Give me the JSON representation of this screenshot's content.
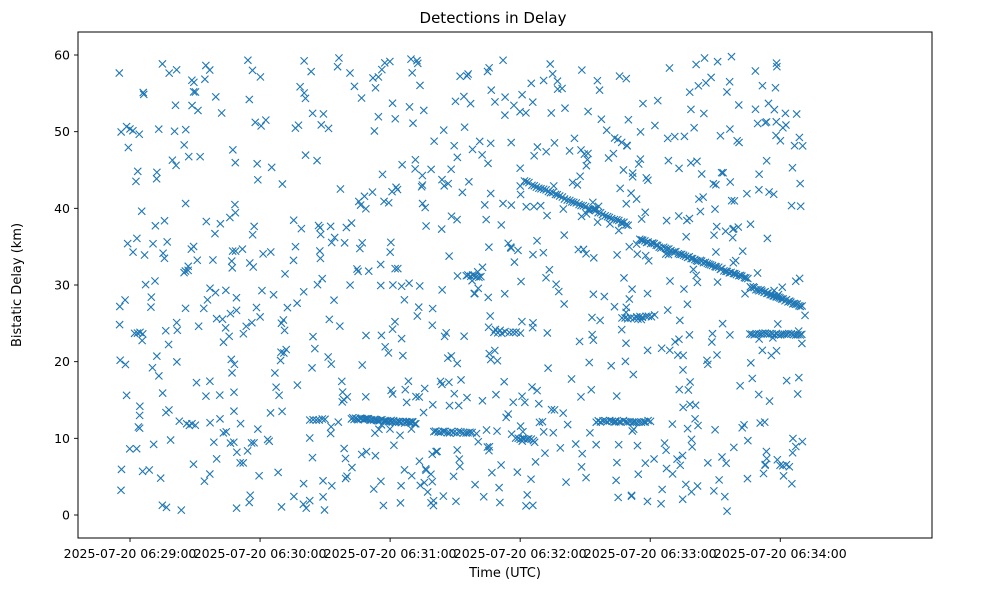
{
  "chart_data": {
    "type": "scatter",
    "title": "Detections in Delay",
    "xlabel": "Time (UTC)",
    "ylabel": "Bistatic Delay (km)",
    "marker": "x",
    "color": "#1f77b4",
    "grid": false,
    "x_unit": "seconds after 2025-07-20 06:29:00",
    "xlim": [
      -24,
      370
    ],
    "ylim": [
      -3,
      63
    ],
    "x_ticks": [
      {
        "value": 0,
        "label": "2025-07-20 06:29:00"
      },
      {
        "value": 60,
        "label": "2025-07-20 06:30:00"
      },
      {
        "value": 120,
        "label": "2025-07-20 06:31:00"
      },
      {
        "value": 180,
        "label": "2025-07-20 06:32:00"
      },
      {
        "value": 240,
        "label": "2025-07-20 06:33:00"
      },
      {
        "value": 300,
        "label": "2025-07-20 06:34:00"
      }
    ],
    "y_ticks": [
      {
        "value": 0,
        "label": "0"
      },
      {
        "value": 10,
        "label": "10"
      },
      {
        "value": 20,
        "label": "20"
      },
      {
        "value": 30,
        "label": "30"
      },
      {
        "value": 40,
        "label": "40"
      },
      {
        "value": 50,
        "label": "50"
      },
      {
        "value": 60,
        "label": "60"
      }
    ],
    "tracks": [
      {
        "x0": 102,
        "x1": 132,
        "y0": 12.6,
        "y1": 12.0,
        "n": 45
      },
      {
        "x0": 140,
        "x1": 158,
        "y0": 10.9,
        "y1": 10.7,
        "n": 18
      },
      {
        "x0": 178,
        "x1": 186,
        "y0": 10.0,
        "y1": 9.8,
        "n": 9
      },
      {
        "x0": 182,
        "x1": 230,
        "y0": 43.5,
        "y1": 37.8,
        "n": 45
      },
      {
        "x0": 235,
        "x1": 285,
        "y0": 36.0,
        "y1": 30.8,
        "n": 60
      },
      {
        "x0": 286,
        "x1": 310,
        "y0": 29.8,
        "y1": 27.2,
        "n": 35
      },
      {
        "x0": 286,
        "x1": 310,
        "y0": 23.6,
        "y1": 23.6,
        "n": 25
      },
      {
        "x0": 215,
        "x1": 240,
        "y0": 12.2,
        "y1": 12.2,
        "n": 25
      },
      {
        "x0": 155,
        "x1": 162,
        "y0": 31.3,
        "y1": 31.1,
        "n": 8
      },
      {
        "x0": 83,
        "x1": 90,
        "y0": 12.4,
        "y1": 12.4,
        "n": 6
      },
      {
        "x0": 227,
        "x1": 242,
        "y0": 25.6,
        "y1": 26.0,
        "n": 12
      },
      {
        "x0": 168,
        "x1": 180,
        "y0": 23.8,
        "y1": 23.8,
        "n": 8
      },
      {
        "x0": 2,
        "x1": 6,
        "y0": 23.7,
        "y1": 23.7,
        "n": 4
      },
      {
        "x0": 26,
        "x1": 30,
        "y0": 11.8,
        "y1": 11.8,
        "n": 4
      },
      {
        "x0": 300,
        "x1": 304,
        "y0": 6.6,
        "y1": 6.4,
        "n": 4
      }
    ],
    "clutter": {
      "count": 850,
      "x_range": [
        -5,
        312
      ],
      "y_range": [
        0.5,
        59.8
      ],
      "seed": 20250720
    }
  }
}
